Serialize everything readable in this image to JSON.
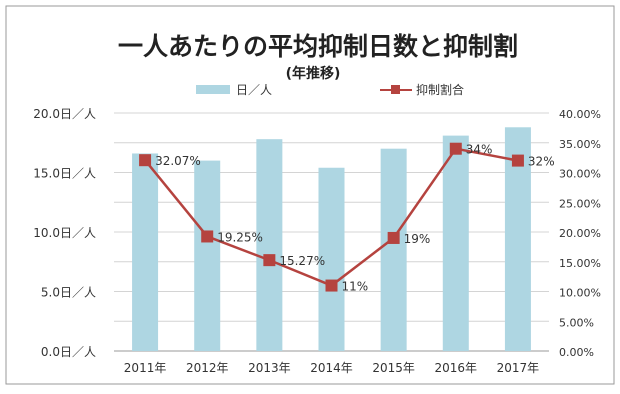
{
  "chart_data": {
    "type": "bar",
    "title": "一人あたりの平均抑制日数と抑制割",
    "subtitle": "(年推移)",
    "categories": [
      "2011年",
      "2012年",
      "2013年",
      "2014年",
      "2015年",
      "2016年",
      "2017年"
    ],
    "series": [
      {
        "name": "日／人",
        "type": "bar",
        "axis": "left",
        "color": "#aed6e2",
        "values": [
          16.6,
          16.0,
          17.8,
          15.4,
          17.0,
          18.1,
          18.8
        ]
      },
      {
        "name": "抑制割合",
        "type": "line",
        "axis": "right",
        "color": "#b5433f",
        "values": [
          32.07,
          19.25,
          15.27,
          11,
          19,
          34,
          32
        ],
        "labels": [
          "32.07%",
          "19.25%",
          "15.27%",
          "11%",
          "19%",
          "34%",
          "32%"
        ]
      }
    ],
    "y_left": {
      "ylim": [
        0,
        20
      ],
      "ticks": [
        0,
        5,
        10,
        15,
        20
      ],
      "tick_labels": [
        "0.0日／人",
        "5.0日／人",
        "10.0日／人",
        "15.0日／人",
        "20.0日／人"
      ]
    },
    "y_right": {
      "ylim": [
        0,
        40
      ],
      "ticks": [
        0,
        5,
        10,
        15,
        20,
        25,
        30,
        35,
        40
      ],
      "tick_labels": [
        "0.00%",
        "5.00%",
        "10.00%",
        "15.00%",
        "20.00%",
        "25.00%",
        "30.00%",
        "35.00%",
        "40.00%"
      ]
    },
    "grid": true,
    "legend": "top"
  }
}
